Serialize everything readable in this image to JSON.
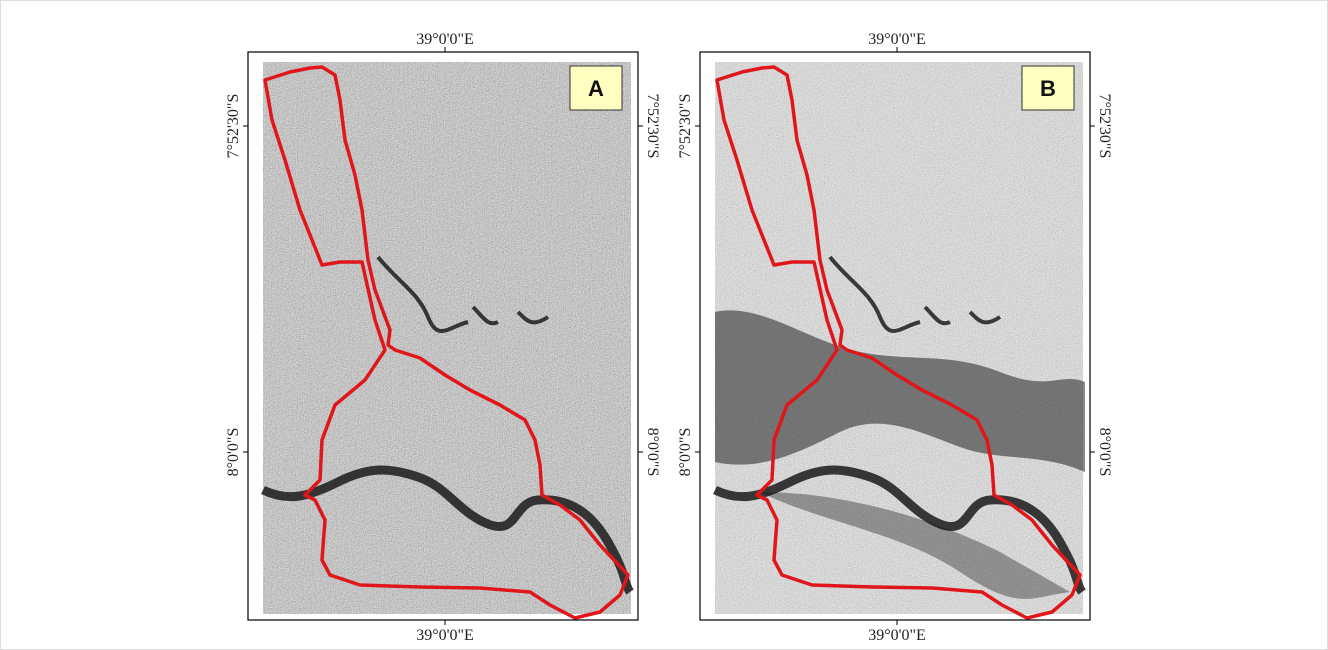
{
  "panels": [
    {
      "label": "A",
      "top_axis_label": "39°0'0\"E",
      "bottom_axis_label": "39°0'0\"E",
      "left_axis_labels": [
        "7°52'30\"S",
        "8°0'0\"S"
      ],
      "right_axis_labels": [
        "7°52'30\"S",
        "8°0'0\"S"
      ]
    },
    {
      "label": "B",
      "top_axis_label": "39°0'0\"E",
      "bottom_axis_label": "39°0'0\"E",
      "left_axis_labels": [
        "7°52'30\"S",
        "8°0'0\"S"
      ],
      "right_axis_labels": [
        "7°52'30\"S",
        "8°0'0\"S"
      ]
    }
  ]
}
